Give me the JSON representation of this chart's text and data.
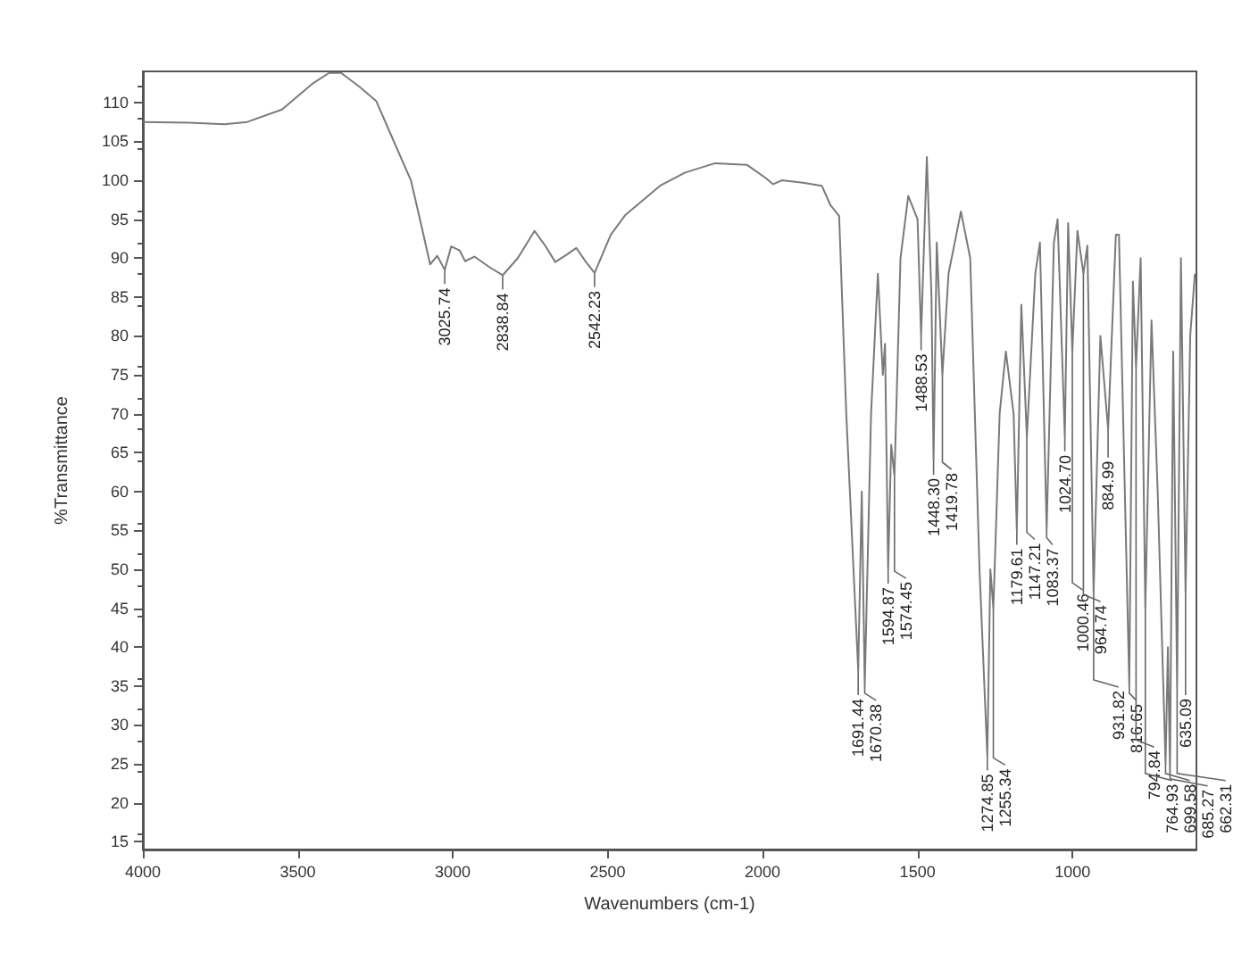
{
  "chart_data": {
    "type": "line",
    "xlabel": "Wavenumbers (cm-1)",
    "ylabel": "%Transmittance",
    "xlim": [
      4000,
      600
    ],
    "xticks": [
      4000,
      3500,
      3000,
      2500,
      2000,
      1500,
      1000
    ],
    "ylim": [
      14,
      114
    ],
    "yticks": [
      15,
      20,
      25,
      30,
      35,
      40,
      45,
      50,
      55,
      60,
      65,
      70,
      75,
      80,
      85,
      90,
      95,
      100,
      105,
      110
    ],
    "grid": false,
    "marker": "none",
    "line_style": "solid",
    "series": [
      {
        "color": "#7a7a7a",
        "x": [
          4000,
          3850,
          3736,
          3663,
          3551,
          3450,
          3399,
          3360,
          3300,
          3247,
          3190,
          3135,
          3100,
          3073,
          3050,
          3025.74,
          3005,
          2978,
          2960,
          2930,
          2880,
          2838.84,
          2790,
          2736,
          2700,
          2669,
          2630,
          2601,
          2570,
          2542.23,
          2490,
          2444,
          2331,
          2250,
          2153,
          2051,
          1990,
          1966,
          1938,
          1870,
          1809,
          1781,
          1753,
          1730,
          1691.44,
          1680,
          1670.38,
          1650,
          1628,
          1612,
          1605,
          1594.87,
          1585,
          1574.45,
          1555,
          1530,
          1500,
          1488.53,
          1470,
          1455,
          1448.3,
          1438,
          1419.78,
          1400,
          1360,
          1330,
          1300,
          1274.85,
          1265,
          1255.34,
          1235,
          1215,
          1190,
          1179.61,
          1165,
          1147.21,
          1120,
          1105,
          1083.37,
          1060,
          1048,
          1024.7,
          1014,
          1000.46,
          984,
          964.74,
          952,
          931.82,
          910,
          884.99,
          860,
          850,
          816.65,
          805,
          794.84,
          780,
          764.93,
          745,
          725,
          699.58,
          692,
          685.27,
          675,
          662.31,
          650,
          635.09,
          620,
          605
        ],
        "values": [
          107.5,
          107.4,
          107.2,
          107.5,
          109.1,
          112.5,
          113.8,
          113.8,
          112,
          110.2,
          105,
          100,
          94,
          89.2,
          90.3,
          88.5,
          91.5,
          91,
          89.6,
          90.2,
          88.8,
          87.8,
          90,
          93.5,
          91.5,
          89.5,
          90.5,
          91.3,
          89.5,
          88.1,
          93,
          95.5,
          99.3,
          101,
          102.2,
          102,
          100.3,
          99.5,
          100,
          99.7,
          99.3,
          96.8,
          95.4,
          70,
          37,
          60,
          35,
          70,
          88,
          75,
          79,
          50,
          66,
          62,
          90,
          98,
          95,
          80,
          103,
          85,
          64,
          92,
          75,
          88,
          96,
          90,
          50,
          26,
          50,
          45,
          70,
          78,
          70,
          55,
          84,
          67,
          88,
          92,
          55,
          92,
          95,
          67,
          94.5,
          78,
          93.5,
          88,
          91.6,
          47,
          80,
          68,
          93,
          93,
          35,
          87,
          76,
          90,
          45,
          82,
          60,
          25,
          40,
          24,
          78,
          35,
          90,
          47,
          80,
          88
        ]
      }
    ],
    "annotations": [
      {
        "text": "3025.74",
        "x": 3025.74,
        "y": 88.5
      },
      {
        "text": "2838.84",
        "x": 2838.84,
        "y": 87.8
      },
      {
        "text": "2542.23",
        "x": 2542.23,
        "y": 88.1
      },
      {
        "text": "1691.44",
        "x": 1691.44,
        "y": 37
      },
      {
        "text": "1670.38",
        "x": 1670.38,
        "y": 35
      },
      {
        "text": "1594.87",
        "x": 1594.87,
        "y": 50
      },
      {
        "text": "1574.45",
        "x": 1574.45,
        "y": 62
      },
      {
        "text": "1488.53",
        "x": 1488.53,
        "y": 80
      },
      {
        "text": "1448.30",
        "x": 1448.3,
        "y": 64
      },
      {
        "text": "1419.78",
        "x": 1419.78,
        "y": 75
      },
      {
        "text": "1274.85",
        "x": 1274.85,
        "y": 26
      },
      {
        "text": "1255.34",
        "x": 1255.34,
        "y": 45
      },
      {
        "text": "1179.61",
        "x": 1179.61,
        "y": 55
      },
      {
        "text": "1147.21",
        "x": 1147.21,
        "y": 67
      },
      {
        "text": "1083.37",
        "x": 1083.37,
        "y": 55
      },
      {
        "text": "1024.70",
        "x": 1024.7,
        "y": 67
      },
      {
        "text": "1000.46",
        "x": 1000.46,
        "y": 78
      },
      {
        "text": "964.74",
        "x": 964.74,
        "y": 88
      },
      {
        "text": "931.82",
        "x": 931.82,
        "y": 47
      },
      {
        "text": "884.99",
        "x": 884.99,
        "y": 68
      },
      {
        "text": "816.65",
        "x": 816.65,
        "y": 35
      },
      {
        "text": "794.84",
        "x": 794.84,
        "y": 76
      },
      {
        "text": "764.93",
        "x": 764.93,
        "y": 45
      },
      {
        "text": "699.58",
        "x": 699.58,
        "y": 25
      },
      {
        "text": "685.27",
        "x": 685.27,
        "y": 24
      },
      {
        "text": "662.31",
        "x": 662.31,
        "y": 35
      },
      {
        "text": "635.09",
        "x": 635.09,
        "y": 47
      }
    ]
  }
}
